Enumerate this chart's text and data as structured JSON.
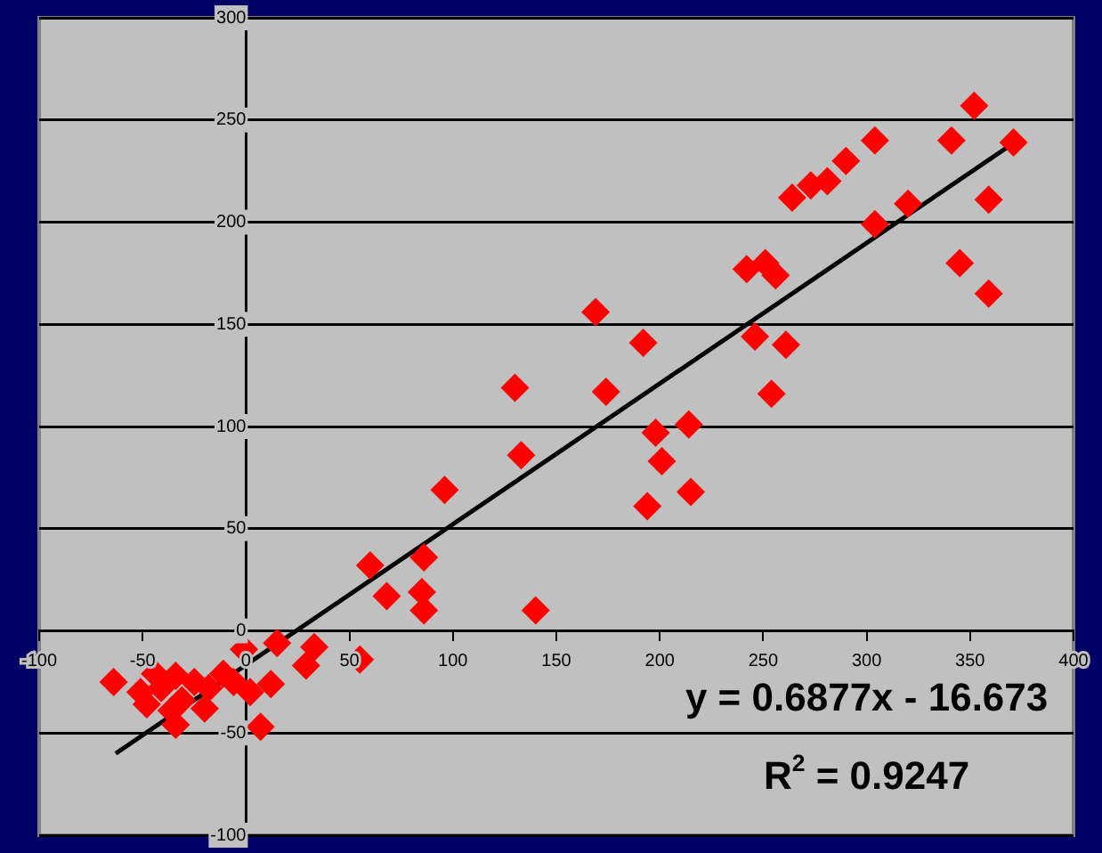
{
  "chart_data": {
    "type": "scatter",
    "xlim": [
      -100,
      400
    ],
    "xticks": [
      -100,
      -50,
      0,
      50,
      100,
      150,
      200,
      250,
      300,
      350,
      400
    ],
    "ylim": [
      -100,
      300
    ],
    "yticks": [
      -100,
      -50,
      0,
      50,
      100,
      150,
      200,
      250,
      300
    ],
    "grid": "y",
    "marker": "diamond",
    "annotations": [
      "y = 0.6877x - 16.673",
      "R$^{2}$ = 0.9247"
    ],
    "series": [
      {
        "type": "scatter",
        "color": "#ff0000",
        "x": [
          352,
          371,
          341,
          304,
          290,
          281,
          273,
          264,
          320,
          359,
          304,
          345,
          359,
          242,
          251,
          256,
          169,
          192,
          246,
          261,
          174,
          254,
          130,
          198,
          214,
          201,
          194,
          215,
          140,
          133,
          96,
          86,
          60,
          68,
          85,
          86,
          55,
          33,
          29,
          15,
          12,
          7,
          2,
          -1,
          -6,
          -11,
          -18,
          -20,
          -25,
          -31,
          -34,
          -34,
          -41,
          -44,
          -48,
          -51,
          -64,
          -36
        ],
        "values": [
          257,
          239,
          240,
          240,
          230,
          220,
          218,
          212,
          209,
          211,
          199,
          180,
          165,
          177,
          180,
          174,
          156,
          141,
          144,
          140,
          117,
          116,
          119,
          97,
          101,
          83,
          61,
          68,
          10,
          86,
          69,
          36,
          32,
          17,
          19,
          10,
          -14,
          -8,
          -17,
          -6,
          -26,
          -47,
          -30,
          -9,
          -25,
          -21,
          -28,
          -38,
          -25,
          -34,
          -46,
          -22,
          -28,
          -21,
          -36,
          -30,
          -25,
          -39
        ]
      },
      {
        "type": "line",
        "color": "#000000",
        "marker": "none",
        "x": [
          -63,
          370
        ],
        "values": [
          -60,
          238
        ]
      }
    ]
  }
}
